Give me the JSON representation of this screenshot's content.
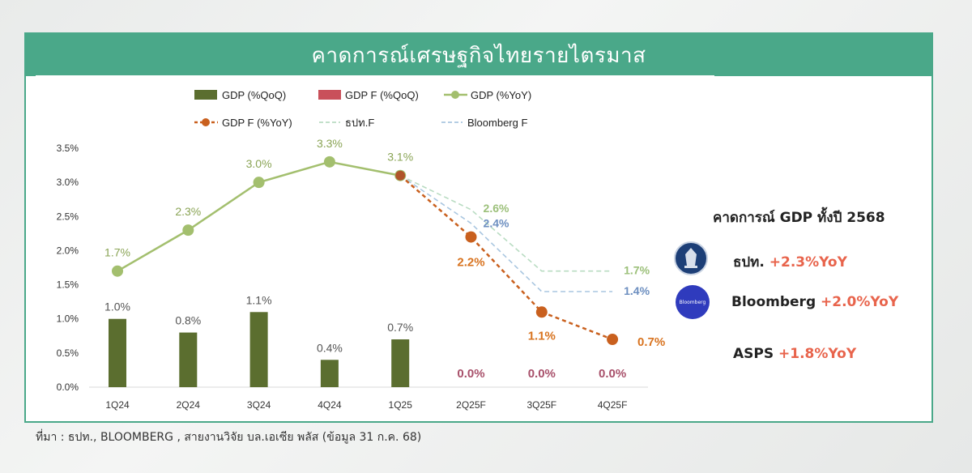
{
  "banner_title": "คาดการณ์เศรษฐกิจไทยรายไตรมาส",
  "source_note": "ที่มา : ธปท., BLOOMBERG , สายงานวิจัย บล.เอเซีย พลัส (ข้อมูล 31 ก.ค. 68)",
  "side_panel": {
    "title": "คาดการณ์ GDP ทั้งปี 2568",
    "bloomberg_logo_text": "Bloomberg",
    "rows": [
      {
        "name": "ธปท.",
        "value": "+2.3%YoY"
      },
      {
        "name": "Bloomberg",
        "value": "+2.0%YoY"
      },
      {
        "name": "ASPS",
        "value": "+1.8%YoY"
      }
    ]
  },
  "colors": {
    "banner": "#4aa889",
    "gdp_qoq_bar": "#5b6e2f",
    "gdp_f_qoq_bar": "#c9505a",
    "gdp_yoy_line": "#a3bf6e",
    "gdp_f_yoy_line": "#c9601e",
    "bot_f_line": "#b9dcc2",
    "bloomberg_f_line": "#a9c6e0",
    "highlight_value": "#e8644c"
  },
  "chart_data": {
    "type": "bar",
    "categories": [
      "1Q24",
      "2Q24",
      "3Q24",
      "4Q24",
      "1Q25",
      "2Q25F",
      "3Q25F",
      "4Q25F"
    ],
    "ylim": [
      0,
      3.5
    ],
    "yticks": [
      "0.0%",
      "0.5%",
      "1.0%",
      "1.5%",
      "2.0%",
      "2.5%",
      "3.0%",
      "3.5%"
    ],
    "legend": [
      "GDP (%QoQ)",
      "GDP F (%QoQ)",
      "GDP (%YoY)",
      "GDP F (%YoY)",
      "ธปท.F",
      "Bloomberg F"
    ],
    "legend_position": "top",
    "grid": false,
    "series": [
      {
        "name": "GDP (%QoQ)",
        "type": "bar",
        "values": [
          1.0,
          0.8,
          1.1,
          0.4,
          0.7,
          null,
          null,
          null
        ],
        "labels": [
          "1.0%",
          "0.8%",
          "1.1%",
          "0.4%",
          "0.7%",
          "",
          "",
          ""
        ]
      },
      {
        "name": "GDP F (%QoQ)",
        "type": "bar",
        "values": [
          null,
          null,
          null,
          null,
          null,
          0.0,
          0.0,
          0.0
        ],
        "labels": [
          "",
          "",
          "",
          "",
          "",
          "0.0%",
          "0.0%",
          "0.0%"
        ]
      },
      {
        "name": "GDP (%YoY)",
        "type": "line",
        "values": [
          1.7,
          2.3,
          3.0,
          3.3,
          3.1,
          null,
          null,
          null
        ],
        "labels": [
          "1.7%",
          "2.3%",
          "3.0%",
          "3.3%",
          "3.1%",
          "",
          "",
          ""
        ]
      },
      {
        "name": "GDP F (%YoY)",
        "type": "line-dashed",
        "values": [
          null,
          null,
          null,
          null,
          3.1,
          2.2,
          1.1,
          0.7
        ],
        "labels": [
          "",
          "",
          "",
          "",
          "",
          "2.2%",
          "1.1%",
          "0.7%"
        ]
      },
      {
        "name": "ธปท.F",
        "type": "line-dashed",
        "values": [
          null,
          null,
          null,
          null,
          3.1,
          2.6,
          1.7,
          1.7
        ],
        "labels": [
          "",
          "",
          "",
          "",
          "",
          "2.6%",
          "",
          "1.7%"
        ]
      },
      {
        "name": "Bloomberg F",
        "type": "line-dashed",
        "values": [
          null,
          null,
          null,
          null,
          3.1,
          2.4,
          1.4,
          1.4
        ],
        "labels": [
          "",
          "",
          "",
          "",
          "",
          "2.4%",
          "",
          "1.4%"
        ]
      }
    ]
  }
}
